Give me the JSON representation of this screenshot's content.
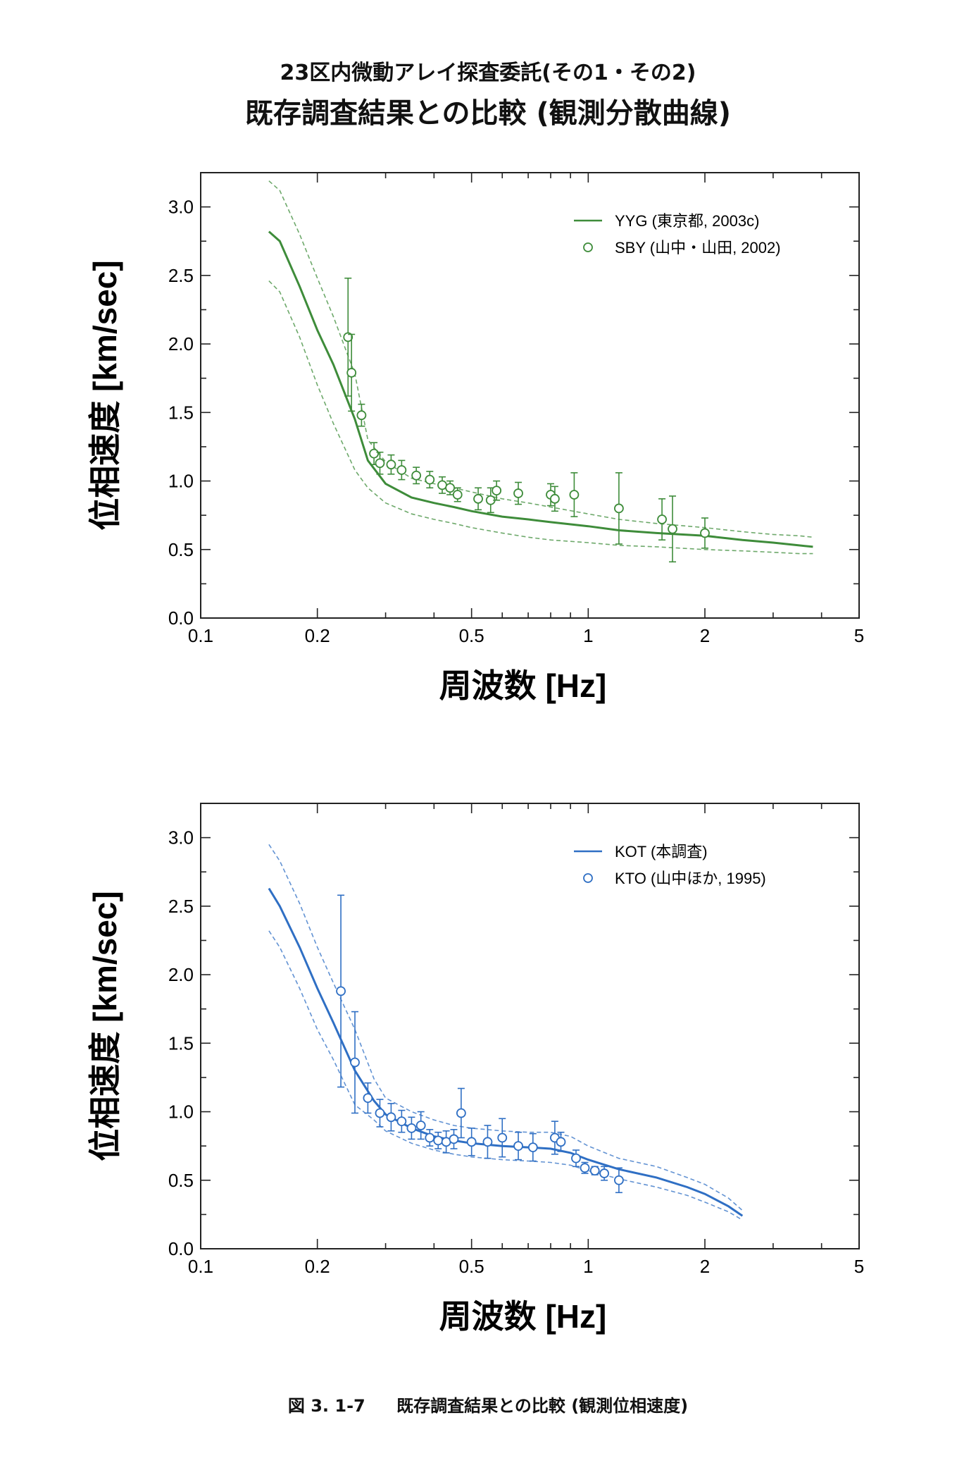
{
  "header": {
    "title_line1": "23区内微動アレイ探査委託(その1・その2)",
    "title_line2": "既存調査結果との比較 (観測分散曲線)"
  },
  "caption": {
    "figure_number": "図 3. 1-7",
    "text": "既存調査結果との比較 (観測位相速度)"
  },
  "chart_data": [
    {
      "type": "line",
      "title": "",
      "xlabel": "周波数 [Hz]",
      "ylabel": "位相速度 [km/sec]",
      "xscale": "log",
      "xlim": [
        0.1,
        5
      ],
      "ylim": [
        0.0,
        3.25
      ],
      "x_ticks": [
        0.1,
        0.2,
        0.5,
        1,
        2,
        5
      ],
      "x_tick_labels": [
        "0.1",
        "0.2",
        "0.5",
        "1",
        "2",
        "5"
      ],
      "y_ticks": [
        0.0,
        0.5,
        1.0,
        1.5,
        2.0,
        2.5,
        3.0
      ],
      "y_tick_labels": [
        "0.0",
        "0.5",
        "1.0",
        "1.5",
        "2.0",
        "2.5",
        "3.0"
      ],
      "grid": false,
      "legend_position": "top-right",
      "color": "#3e8c3a",
      "series": [
        {
          "name": "YYG (東京都, 2003c)",
          "kind": "line",
          "x": [
            0.15,
            0.16,
            0.18,
            0.2,
            0.22,
            0.25,
            0.27,
            0.3,
            0.35,
            0.4,
            0.45,
            0.5,
            0.6,
            0.7,
            0.8,
            1.0,
            1.2,
            1.5,
            2.0,
            2.5,
            3.0,
            3.5,
            3.8
          ],
          "y": [
            2.82,
            2.75,
            2.42,
            2.1,
            1.85,
            1.45,
            1.15,
            0.98,
            0.88,
            0.84,
            0.81,
            0.78,
            0.74,
            0.72,
            0.7,
            0.67,
            0.64,
            0.62,
            0.6,
            0.57,
            0.55,
            0.53,
            0.52
          ],
          "upper_bound": [
            3.19,
            3.12,
            2.8,
            2.48,
            2.2,
            1.78,
            1.3,
            1.14,
            1.02,
            0.98,
            0.95,
            0.92,
            0.87,
            0.84,
            0.81,
            0.76,
            0.72,
            0.69,
            0.66,
            0.63,
            0.61,
            0.6,
            0.59
          ],
          "lower_bound": [
            2.46,
            2.38,
            2.05,
            1.7,
            1.42,
            1.08,
            0.95,
            0.84,
            0.76,
            0.72,
            0.69,
            0.66,
            0.62,
            0.59,
            0.57,
            0.55,
            0.53,
            0.52,
            0.5,
            0.49,
            0.48,
            0.47,
            0.47
          ]
        },
        {
          "name": "SBY (山中・山田, 2002)",
          "kind": "scatter",
          "x": [
            0.24,
            0.245,
            0.26,
            0.28,
            0.29,
            0.31,
            0.33,
            0.36,
            0.39,
            0.42,
            0.44,
            0.46,
            0.52,
            0.56,
            0.58,
            0.66,
            0.8,
            0.82,
            0.92,
            1.2,
            1.55,
            1.65,
            2.0
          ],
          "y": [
            2.05,
            1.79,
            1.48,
            1.2,
            1.13,
            1.12,
            1.08,
            1.04,
            1.01,
            0.97,
            0.95,
            0.9,
            0.87,
            0.86,
            0.93,
            0.91,
            0.9,
            0.87,
            0.9,
            0.8,
            0.72,
            0.65,
            0.62
          ],
          "error": [
            0.43,
            0.28,
            0.08,
            0.08,
            0.08,
            0.07,
            0.07,
            0.06,
            0.06,
            0.06,
            0.05,
            0.05,
            0.08,
            0.09,
            0.07,
            0.08,
            0.08,
            0.09,
            0.16,
            0.26,
            0.15,
            0.24,
            0.11
          ]
        }
      ]
    },
    {
      "type": "line",
      "title": "",
      "xlabel": "周波数 [Hz]",
      "ylabel": "位相速度 [km/sec]",
      "xscale": "log",
      "xlim": [
        0.1,
        5
      ],
      "ylim": [
        0.0,
        3.25
      ],
      "x_ticks": [
        0.1,
        0.2,
        0.5,
        1,
        2,
        5
      ],
      "x_tick_labels": [
        "0.1",
        "0.2",
        "0.5",
        "1",
        "2",
        "5"
      ],
      "y_ticks": [
        0.0,
        0.5,
        1.0,
        1.5,
        2.0,
        2.5,
        3.0
      ],
      "y_tick_labels": [
        "0.0",
        "0.5",
        "1.0",
        "1.5",
        "2.0",
        "2.5",
        "3.0"
      ],
      "grid": false,
      "legend_position": "top-right",
      "color": "#2f6fc4",
      "series": [
        {
          "name": "KOT (本調査)",
          "kind": "line",
          "x": [
            0.15,
            0.16,
            0.18,
            0.2,
            0.22,
            0.25,
            0.28,
            0.3,
            0.35,
            0.4,
            0.45,
            0.5,
            0.6,
            0.7,
            0.8,
            0.9,
            1.0,
            1.2,
            1.5,
            1.8,
            2.0,
            2.3,
            2.5
          ],
          "y": [
            2.63,
            2.5,
            2.2,
            1.9,
            1.65,
            1.3,
            1.08,
            0.98,
            0.88,
            0.82,
            0.79,
            0.77,
            0.75,
            0.74,
            0.73,
            0.7,
            0.65,
            0.58,
            0.52,
            0.45,
            0.4,
            0.31,
            0.24
          ],
          "upper_bound": [
            2.95,
            2.83,
            2.52,
            2.2,
            1.94,
            1.6,
            1.24,
            1.1,
            1.0,
            0.94,
            0.9,
            0.88,
            0.86,
            0.85,
            0.85,
            0.82,
            0.75,
            0.66,
            0.6,
            0.52,
            0.47,
            0.37,
            0.28
          ],
          "lower_bound": [
            2.32,
            2.2,
            1.9,
            1.6,
            1.38,
            1.05,
            0.94,
            0.86,
            0.77,
            0.72,
            0.69,
            0.67,
            0.65,
            0.64,
            0.63,
            0.61,
            0.57,
            0.51,
            0.45,
            0.39,
            0.34,
            0.27,
            0.21
          ]
        },
        {
          "name": "KTO (山中ほか, 1995)",
          "kind": "scatter",
          "x": [
            0.23,
            0.25,
            0.27,
            0.29,
            0.31,
            0.33,
            0.35,
            0.37,
            0.39,
            0.41,
            0.43,
            0.45,
            0.47,
            0.5,
            0.55,
            0.6,
            0.66,
            0.72,
            0.82,
            0.85,
            0.93,
            0.98,
            1.04,
            1.1,
            1.2
          ],
          "y": [
            1.88,
            1.36,
            1.1,
            0.99,
            0.96,
            0.93,
            0.88,
            0.9,
            0.81,
            0.79,
            0.78,
            0.8,
            0.99,
            0.78,
            0.78,
            0.81,
            0.75,
            0.74,
            0.81,
            0.78,
            0.66,
            0.59,
            0.57,
            0.55,
            0.5
          ],
          "error": [
            0.7,
            0.37,
            0.11,
            0.1,
            0.1,
            0.08,
            0.08,
            0.1,
            0.06,
            0.06,
            0.08,
            0.07,
            0.18,
            0.1,
            0.12,
            0.14,
            0.1,
            0.1,
            0.12,
            0.07,
            0.06,
            0.04,
            0.03,
            0.05,
            0.09
          ]
        }
      ]
    }
  ]
}
